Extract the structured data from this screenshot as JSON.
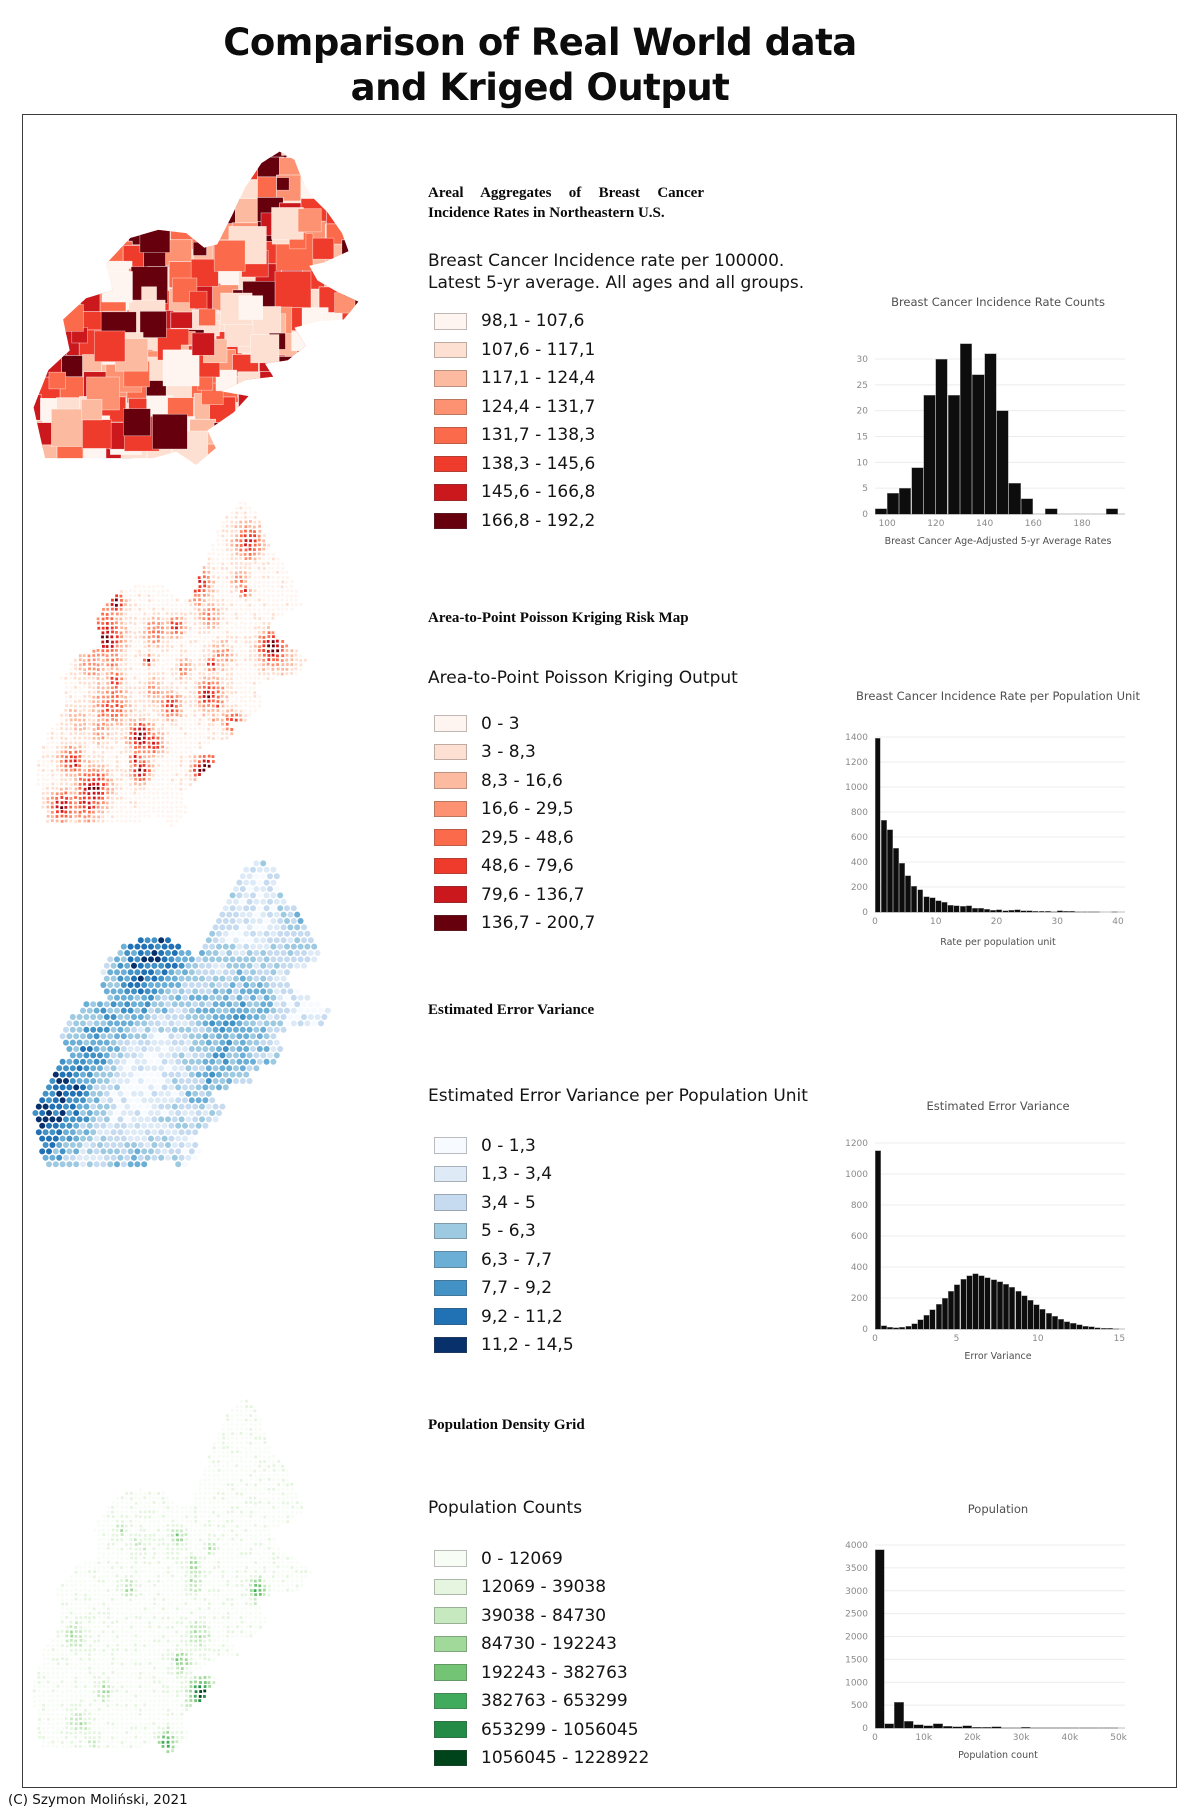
{
  "page": {
    "title_line1": "Comparison of Real World data",
    "title_line2": "and Kriged Output",
    "copyright": "(C) Szymon Moliński, 2021"
  },
  "palettes": {
    "reds": [
      "#fff5f0",
      "#fee0d2",
      "#fcbba1",
      "#fc9272",
      "#fb6a4a",
      "#ef3b2c",
      "#cb181d",
      "#67000d"
    ],
    "blues": [
      "#f7fbff",
      "#deebf7",
      "#c6dbef",
      "#9ecae1",
      "#6baed6",
      "#4292c6",
      "#2171b5",
      "#08306b"
    ],
    "greens": [
      "#f7fcf5",
      "#e5f5e0",
      "#c7e9c0",
      "#a1d99b",
      "#74c476",
      "#41ab5d",
      "#238b45",
      "#00441b"
    ],
    "bar": "#0d0d0d"
  },
  "rows": [
    {
      "heading": "Areal Aggregates of Breast Cancer Incidence Rates in Northeastern U.S.",
      "subtitle": "Breast Cancer Incidence rate per 100000.\nLatest 5-yr average. All ages and all groups.",
      "palette": "reds",
      "legend": [
        "98,1 - 107,6",
        "107,6 - 117,1",
        "117,1 - 124,4",
        "124,4 - 131,7",
        "131,7 - 138,3",
        "138,3 - 145,6",
        "145,6 - 166,8",
        "166,8 - 192,2"
      ]
    },
    {
      "heading": "Area-to-Point Poisson Kriging Risk Map",
      "subtitle": "Area-to-Point Poisson Kriging Output",
      "palette": "reds",
      "legend": [
        "0 - 3",
        "3 - 8,3",
        "8,3 - 16,6",
        "16,6 - 29,5",
        "29,5 - 48,6",
        "48,6 - 79,6",
        "79,6 - 136,7",
        "136,7 - 200,7"
      ]
    },
    {
      "heading": "Estimated Error Variance",
      "subtitle": "Estimated Error Variance per Population Unit",
      "palette": "blues",
      "legend": [
        "0 - 1,3",
        "1,3 - 3,4",
        "3,4 - 5",
        "5 - 6,3",
        "6,3 - 7,7",
        "7,7 - 9,2",
        "9,2 - 11,2",
        "11,2 - 14,5"
      ]
    },
    {
      "heading": "Population Density Grid",
      "subtitle": "Population Counts",
      "palette": "greens",
      "legend": [
        "0 - 12069",
        "12069 - 39038",
        "39038 - 84730",
        "84730 - 192243",
        "192243 - 382763",
        "382763 - 653299",
        "653299 - 1056045",
        "1056045 - 1228922"
      ]
    }
  ],
  "chart_data": [
    {
      "type": "bar",
      "title": "Breast Cancer Incidence Rate Counts",
      "xlabel": "Breast Cancer Age-Adjusted 5-yr Average Rates",
      "bin_start": 95,
      "bin_width": 5,
      "values": [
        1,
        4,
        5,
        9,
        23,
        30,
        23,
        33,
        27,
        31,
        20,
        6,
        3,
        0,
        1,
        0,
        0,
        0,
        0,
        1
      ],
      "yticks": [
        0,
        5,
        10,
        15,
        20,
        25,
        30
      ],
      "xticks": [
        {
          "v": 100,
          "label": "100"
        },
        {
          "v": 120,
          "label": "120"
        },
        {
          "v": 140,
          "label": "140"
        },
        {
          "v": 160,
          "label": "160"
        },
        {
          "v": 180,
          "label": "180"
        }
      ],
      "xlim": [
        95,
        196
      ],
      "ylim": [
        0,
        33
      ],
      "grid": true,
      "legend": false
    },
    {
      "type": "bar",
      "title": "Breast Cancer Incidence Rate per Population Unit",
      "xlabel": "Rate per population unit",
      "bin_start": 0,
      "bin_width": 1,
      "values": [
        1390,
        735,
        660,
        510,
        390,
        290,
        205,
        180,
        122,
        115,
        92,
        80,
        56,
        50,
        46,
        52,
        32,
        30,
        22,
        16,
        20,
        11,
        15,
        19,
        10,
        10,
        6,
        8,
        5,
        4,
        9,
        6,
        5,
        3,
        2,
        1,
        1,
        0,
        0,
        1
      ],
      "yticks": [
        0,
        200,
        400,
        600,
        800,
        1000,
        1200,
        1400
      ],
      "xticks": [
        {
          "v": 0,
          "label": "0"
        },
        {
          "v": 10,
          "label": "10"
        },
        {
          "v": 20,
          "label": "20"
        },
        {
          "v": 30,
          "label": "30"
        },
        {
          "v": 40,
          "label": "40"
        }
      ],
      "xlim": [
        0,
        40.5
      ],
      "ylim": [
        0,
        1400
      ],
      "grid": true,
      "legend": false
    },
    {
      "type": "bar",
      "title": "Estimated Error Variance",
      "xlabel": "Error Variance",
      "bin_start": 0,
      "bin_width": 0.375,
      "values": [
        1150,
        20,
        12,
        8,
        10,
        18,
        35,
        60,
        90,
        125,
        160,
        200,
        245,
        285,
        320,
        345,
        355,
        345,
        332,
        318,
        305,
        290,
        268,
        245,
        215,
        185,
        155,
        128,
        103,
        82,
        63,
        48,
        36,
        26,
        18,
        13,
        9,
        6,
        4,
        2
      ],
      "yticks": [
        0,
        200,
        400,
        600,
        800,
        1000,
        1200
      ],
      "xticks": [
        {
          "v": 0,
          "label": "0"
        },
        {
          "v": 5,
          "label": "5"
        },
        {
          "v": 10,
          "label": "10"
        },
        {
          "v": 15,
          "label": "15"
        }
      ],
      "xlim": [
        0,
        15.1
      ],
      "ylim": [
        0,
        1200
      ],
      "grid": true,
      "legend": false
    },
    {
      "type": "bar",
      "title": "Population",
      "xlabel": "Population count",
      "bin_start": 0,
      "bin_width": 2000,
      "values": [
        3900,
        90,
        560,
        150,
        70,
        50,
        90,
        40,
        25,
        45,
        18,
        12,
        30,
        10,
        7,
        15,
        5,
        4,
        10,
        3,
        3,
        6,
        2,
        2,
        5
      ],
      "yticks": [
        0,
        500,
        1000,
        1500,
        2000,
        2500,
        3000,
        3500,
        4000
      ],
      "xticks": [
        {
          "v": 0,
          "label": "0"
        },
        {
          "v": 10000,
          "label": "10k"
        },
        {
          "v": 20000,
          "label": "20k"
        },
        {
          "v": 30000,
          "label": "30k"
        },
        {
          "v": 40000,
          "label": "40k"
        },
        {
          "v": 50000,
          "label": "50k"
        }
      ],
      "xlim": [
        0,
        50500
      ],
      "ylim": [
        0,
        4000
      ],
      "grid": true,
      "legend": false
    }
  ]
}
